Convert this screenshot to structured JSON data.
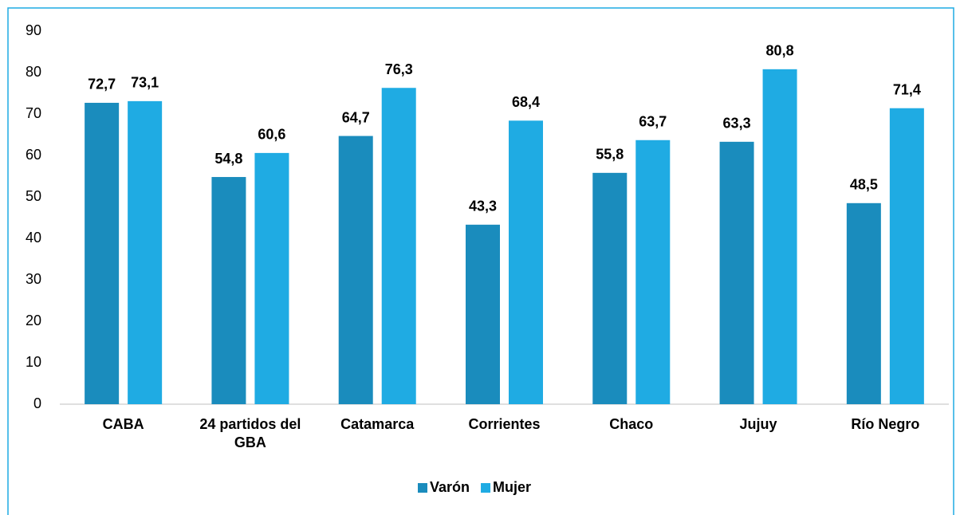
{
  "chart_data": {
    "type": "bar",
    "categories": [
      "CABA",
      "24 partidos del GBA",
      "Catamarca",
      "Corrientes",
      "Chaco",
      "Jujuy",
      "Río Negro"
    ],
    "series": [
      {
        "name": "Varón",
        "color": "#1a8cbd",
        "values": [
          72.7,
          54.8,
          64.7,
          43.3,
          55.8,
          63.3,
          48.5
        ],
        "value_labels": [
          "72,7",
          "54,8",
          "64,7",
          "43,3",
          "55,8",
          "63,3",
          "48,5"
        ]
      },
      {
        "name": "Mujer",
        "color": "#1fabe3",
        "values": [
          73.1,
          60.6,
          76.3,
          68.4,
          63.7,
          80.8,
          71.4
        ],
        "value_labels": [
          "73,1",
          "60,6",
          "76,3",
          "68,4",
          "63,7",
          "80,8",
          "71,4"
        ]
      }
    ],
    "ylim": [
      0,
      90
    ],
    "yticks": [
      0,
      10,
      20,
      30,
      40,
      50,
      60,
      70,
      80,
      90
    ],
    "grid": false,
    "legend": "bottom"
  }
}
